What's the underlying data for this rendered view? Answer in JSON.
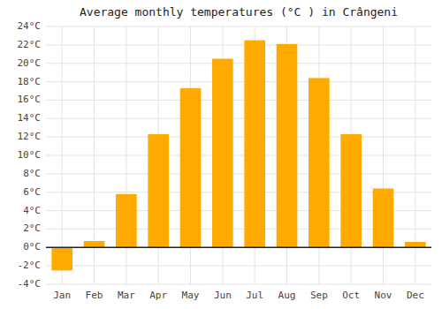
{
  "chart_data": {
    "type": "bar",
    "title": "Average monthly temperatures (°C ) in Crângeni",
    "categories": [
      "Jan",
      "Feb",
      "Mar",
      "Apr",
      "May",
      "Jun",
      "Jul",
      "Aug",
      "Sep",
      "Oct",
      "Nov",
      "Dec"
    ],
    "values": [
      -2.5,
      0.7,
      5.8,
      12.3,
      17.3,
      20.5,
      22.5,
      22.1,
      18.4,
      12.3,
      6.4,
      0.6
    ],
    "color": "#FFAA00",
    "ylim": [
      -4,
      24
    ],
    "yticks": [
      {
        "value": -4,
        "label": "-4°C"
      },
      {
        "value": -2,
        "label": "-2°C"
      },
      {
        "value": 0,
        "label": "0°C"
      },
      {
        "value": 2,
        "label": "2°C"
      },
      {
        "value": 4,
        "label": "4°C"
      },
      {
        "value": 6,
        "label": "6°C"
      },
      {
        "value": 8,
        "label": "8°C"
      },
      {
        "value": 10,
        "label": "10°C"
      },
      {
        "value": 12,
        "label": "12°C"
      },
      {
        "value": 14,
        "label": "14°C"
      },
      {
        "value": 16,
        "label": "16°C"
      },
      {
        "value": 18,
        "label": "18°C"
      },
      {
        "value": 20,
        "label": "20°C"
      },
      {
        "value": 22,
        "label": "22°C"
      },
      {
        "value": 24,
        "label": "24°C"
      }
    ],
    "grid": true
  }
}
